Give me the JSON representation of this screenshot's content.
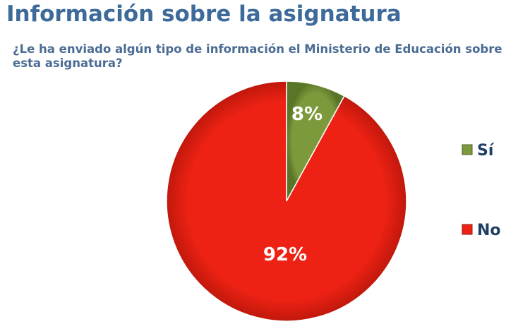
{
  "header": {
    "title": "Información sobre la asignatura",
    "question": "¿Le ha enviado algún tipo de información el Ministerio de Educación sobre esta asignatura?"
  },
  "chart_data": {
    "type": "pie",
    "title": "",
    "categories": [
      "Sí",
      "No"
    ],
    "values": [
      8,
      92
    ],
    "labels": [
      "8%",
      "92%"
    ],
    "colors": [
      "#7c9a3c",
      "#ee2214"
    ],
    "legend": "right"
  }
}
